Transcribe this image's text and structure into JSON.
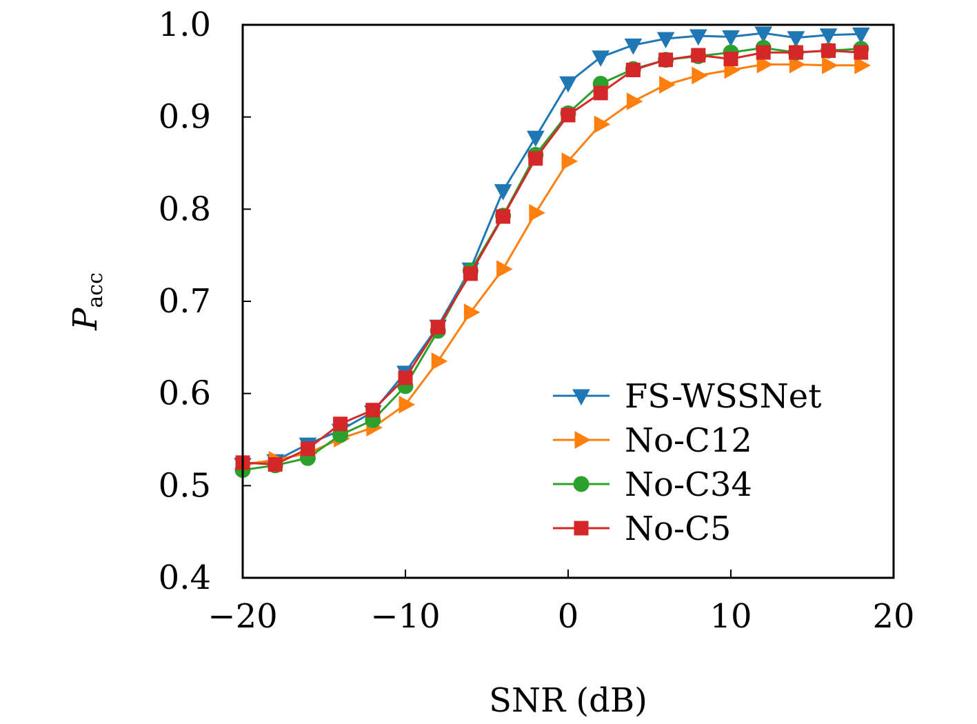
{
  "chart_data": {
    "type": "line",
    "title": "",
    "xlabel": "SNR (dB)",
    "ylabel_main": "P",
    "ylabel_sub": "acc",
    "xlim": [
      -20,
      20
    ],
    "ylim": [
      0.4,
      1.0
    ],
    "xticks": [
      -20,
      -10,
      0,
      10,
      20
    ],
    "xtick_labels": [
      "−20",
      "−10",
      "0",
      "10",
      "20"
    ],
    "yticks": [
      0.4,
      0.5,
      0.6,
      0.7,
      0.8,
      0.9,
      1.0
    ],
    "ytick_labels": [
      "0.4",
      "0.5",
      "0.6",
      "0.7",
      "0.8",
      "0.9",
      "1.0"
    ],
    "grid": false,
    "legend_position": "lower-right",
    "x": [
      -20,
      -18,
      -16,
      -14,
      -12,
      -10,
      -8,
      -6,
      -4,
      -2,
      0,
      2,
      4,
      6,
      8,
      10,
      12,
      14,
      16,
      18
    ],
    "series": [
      {
        "name": "FS-WSSNet",
        "color": "#1f77b4",
        "marker": "triangle-down",
        "values": [
          0.523,
          0.527,
          0.545,
          0.56,
          0.58,
          0.623,
          0.673,
          0.735,
          0.82,
          0.878,
          0.937,
          0.965,
          0.978,
          0.985,
          0.988,
          0.987,
          0.991,
          0.986,
          0.989,
          0.99
        ]
      },
      {
        "name": "No-C12",
        "color": "#ff7f0e",
        "marker": "triangle-right",
        "values": [
          0.523,
          0.528,
          0.535,
          0.551,
          0.563,
          0.588,
          0.635,
          0.688,
          0.735,
          0.796,
          0.852,
          0.892,
          0.917,
          0.935,
          0.945,
          0.951,
          0.957,
          0.957,
          0.956,
          0.956
        ]
      },
      {
        "name": "No-C34",
        "color": "#2ca02c",
        "marker": "circle",
        "values": [
          0.517,
          0.522,
          0.53,
          0.555,
          0.571,
          0.608,
          0.668,
          0.733,
          0.793,
          0.859,
          0.904,
          0.936,
          0.952,
          0.962,
          0.966,
          0.97,
          0.975,
          0.97,
          0.972,
          0.974
        ]
      },
      {
        "name": "No-C5",
        "color": "#d62728",
        "marker": "square",
        "values": [
          0.525,
          0.523,
          0.54,
          0.567,
          0.582,
          0.617,
          0.672,
          0.73,
          0.792,
          0.855,
          0.902,
          0.926,
          0.951,
          0.962,
          0.967,
          0.963,
          0.97,
          0.97,
          0.972,
          0.97
        ]
      }
    ]
  }
}
